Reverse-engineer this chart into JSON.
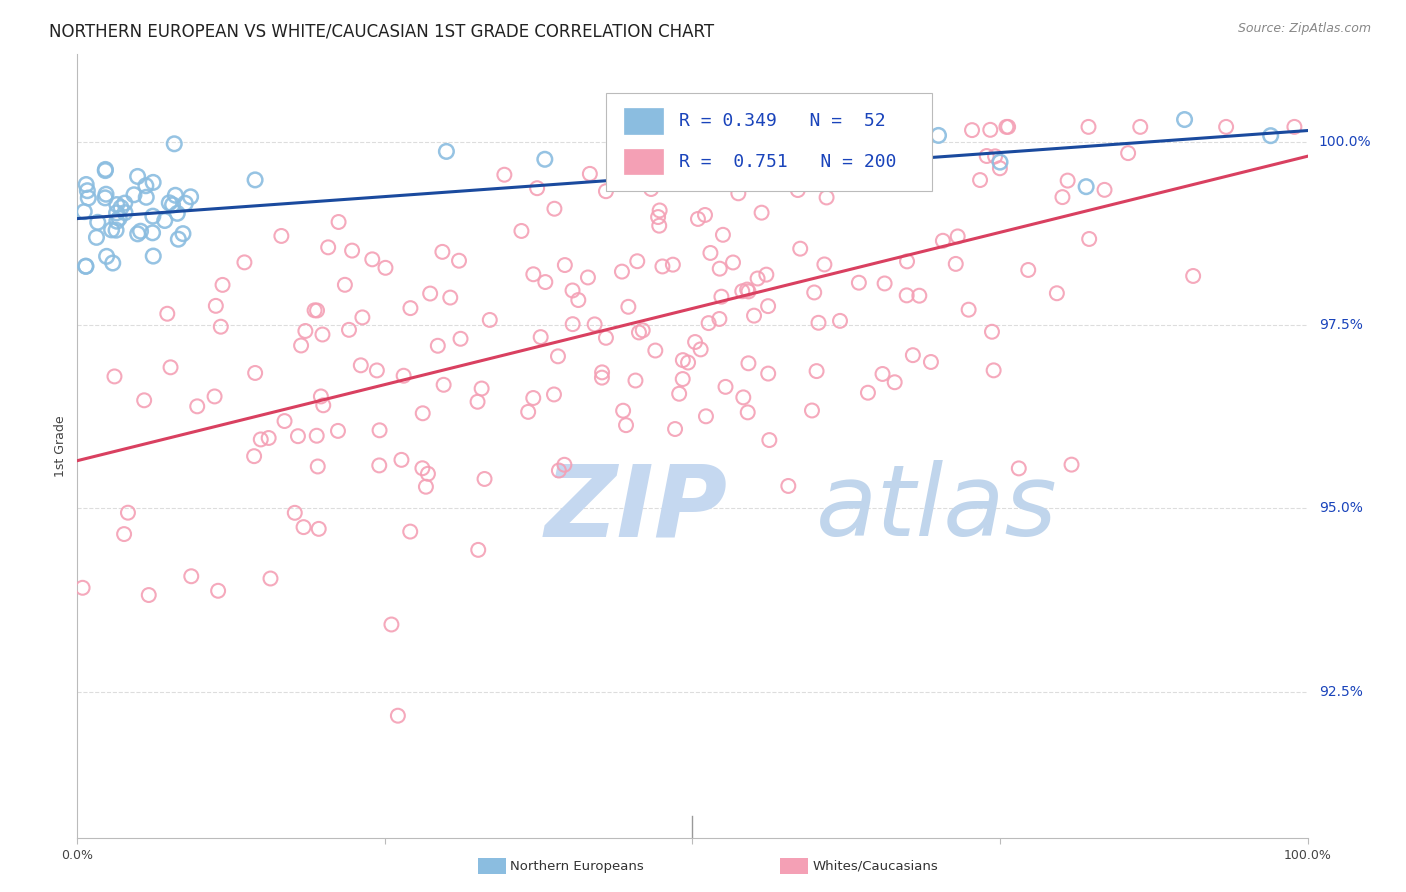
{
  "title": "NORTHERN EUROPEAN VS WHITE/CAUCASIAN 1ST GRADE CORRELATION CHART",
  "source": "Source: ZipAtlas.com",
  "ylabel": "1st Grade",
  "ytick_labels": [
    "100.0%",
    "97.5%",
    "95.0%",
    "92.5%"
  ],
  "ytick_values": [
    1.0,
    0.975,
    0.95,
    0.925
  ],
  "xlim": [
    0.0,
    1.0
  ],
  "ylim": [
    0.905,
    1.012
  ],
  "blue_R": 0.349,
  "blue_N": 52,
  "pink_R": 0.751,
  "pink_N": 200,
  "blue_color": "#8bbde0",
  "pink_color": "#f4a0b5",
  "blue_line_color": "#1a4a9e",
  "pink_line_color": "#d94060",
  "legend_text_color": "#1a44bb",
  "watermark_zip_color": "#c5d8f0",
  "watermark_atlas_color": "#c0d5ec",
  "background_color": "#ffffff",
  "blue_line_y0": 0.9895,
  "blue_line_y1": 1.0015,
  "pink_line_y0": 0.9565,
  "pink_line_y1": 0.998,
  "grid_color": "#dddddd",
  "title_fontsize": 12,
  "axis_label_fontsize": 9,
  "tick_fontsize": 9,
  "legend_fontsize": 13,
  "source_fontsize": 9
}
